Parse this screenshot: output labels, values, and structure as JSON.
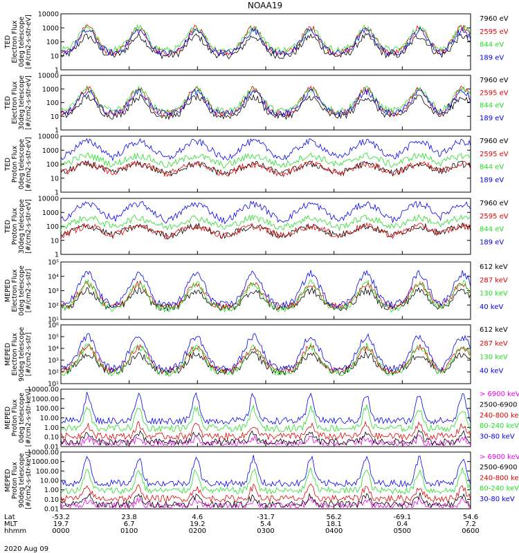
{
  "title": "NOAA19",
  "date_label": "2020 Aug 09",
  "colors": {
    "black": "#000000",
    "red": "#e00000",
    "green": "#22dd22",
    "blue": "#0000ee",
    "magenta": "#ee00ee"
  },
  "footer": {
    "rows": [
      {
        "label": "Lat",
        "values": [
          "-53.2",
          "23.8",
          "4.6",
          "-31.7",
          "56.2",
          "-69.1",
          "54.6"
        ]
      },
      {
        "label": "MLT",
        "values": [
          "19.7",
          "6.7",
          "19.2",
          "5.4",
          "18.1",
          "0.4",
          "7.2"
        ]
      },
      {
        "label": "hhmm",
        "values": [
          "0000",
          "0100",
          "0200",
          "0300",
          "0400",
          "0500",
          "0600"
        ]
      }
    ]
  },
  "chart_data": [
    {
      "type": "line",
      "id": "p1",
      "ylabel": [
        "TED",
        "Electron Flux",
        "0deg telescope",
        "[#/cm2-s-str-eV]"
      ],
      "yscale": "log",
      "ylim": [
        1,
        10000
      ],
      "ytick_labels": [
        "1",
        "10",
        "100",
        "1000",
        "10000"
      ],
      "legend": [
        {
          "label": "7960 eV",
          "color": "#000000"
        },
        {
          "label": "2595 eV",
          "color": "#e00000"
        },
        {
          "label": "844 eV",
          "color": "#22dd22"
        },
        {
          "label": "189 eV",
          "color": "#0000ee"
        }
      ]
    },
    {
      "type": "line",
      "id": "p2",
      "ylabel": [
        "TED",
        "Electron Flux",
        "30deg telescope",
        "[#/cm2-s-str-eV]"
      ],
      "yscale": "log",
      "ylim": [
        1,
        10000
      ],
      "ytick_labels": [
        "1",
        "10",
        "100",
        "1000",
        "10000"
      ],
      "legend": [
        {
          "label": "7960 eV",
          "color": "#000000"
        },
        {
          "label": "2595 eV",
          "color": "#e00000"
        },
        {
          "label": "844 eV",
          "color": "#22dd22"
        },
        {
          "label": "189 eV",
          "color": "#0000ee"
        }
      ]
    },
    {
      "type": "line",
      "id": "p3",
      "ylabel": [
        "TED",
        "Proton Flux",
        "0deg telescope",
        "[#/cm2-s-str-eV]"
      ],
      "yscale": "log",
      "ylim": [
        1,
        10000
      ],
      "ytick_labels": [
        "1",
        "10",
        "100",
        "1000",
        "10000"
      ],
      "legend": [
        {
          "label": "7960 eV",
          "color": "#000000"
        },
        {
          "label": "2595 eV",
          "color": "#e00000"
        },
        {
          "label": "844 eV",
          "color": "#22dd22"
        },
        {
          "label": "189 eV",
          "color": "#0000ee"
        }
      ]
    },
    {
      "type": "line",
      "id": "p4",
      "ylabel": [
        "TED",
        "Proton Flux",
        "30deg telescope",
        "[#/cm2-s-str-eV]"
      ],
      "yscale": "log",
      "ylim": [
        1,
        10000
      ],
      "ytick_labels": [
        "1",
        "10",
        "100",
        "1000",
        "10000"
      ],
      "legend": [
        {
          "label": "7960 eV",
          "color": "#000000"
        },
        {
          "label": "2595 eV",
          "color": "#e00000"
        },
        {
          "label": "844 eV",
          "color": "#22dd22"
        },
        {
          "label": "189 eV",
          "color": "#0000ee"
        }
      ]
    },
    {
      "type": "line",
      "id": "p5",
      "ylabel": [
        "MEPED",
        "Electron Flux",
        "0deg telescope",
        "[#/cm2-s-str]"
      ],
      "yscale": "log",
      "ylim": [
        10,
        100000
      ],
      "ytick_labels": [
        "10¹",
        "10²",
        "10³",
        "10⁴",
        "10⁵"
      ],
      "legend": [
        {
          "label": "612 keV",
          "color": "#000000"
        },
        {
          "label": "287 keV",
          "color": "#e00000"
        },
        {
          "label": "130 keV",
          "color": "#22dd22"
        },
        {
          "label": "40 keV",
          "color": "#0000ee"
        }
      ]
    },
    {
      "type": "line",
      "id": "p6",
      "ylabel": [
        "MEPED",
        "Electron Flux",
        "90deg telescope",
        "[#/cm2-s-str]"
      ],
      "yscale": "log",
      "ylim": [
        10,
        1000000
      ],
      "ytick_labels": [
        "10¹",
        "10²",
        "10³",
        "10⁴",
        "10⁵",
        "10⁶"
      ],
      "legend": [
        {
          "label": "612 keV",
          "color": "#000000"
        },
        {
          "label": "287 keV",
          "color": "#e00000"
        },
        {
          "label": "130 keV",
          "color": "#22dd22"
        },
        {
          "label": "40 keV",
          "color": "#0000ee"
        }
      ]
    },
    {
      "type": "line",
      "id": "p7",
      "ylabel": [
        "MEPED",
        "Proton Flux",
        "0deg telescope",
        "[#/cm2-s-str-keV]"
      ],
      "yscale": "log",
      "ylim": [
        0.01,
        10000
      ],
      "ytick_labels": [
        "0.01",
        "0.10",
        "1.00",
        "10.00",
        "100.00",
        "1000.00",
        "10000.00"
      ],
      "legend": [
        {
          "label": "> 6900 keV",
          "color": "#ee00ee"
        },
        {
          "label": "2500-6900",
          "color": "#000000"
        },
        {
          "label": "240-800 keV",
          "color": "#e00000"
        },
        {
          "label": "80-240 keV",
          "color": "#22dd22"
        },
        {
          "label": "30-80 keV",
          "color": "#0000ee"
        }
      ]
    },
    {
      "type": "line",
      "id": "p8",
      "ylabel": [
        "MEPED",
        "Proton Flux",
        "90deg telescope",
        "[#/cm2-s-str-keV]"
      ],
      "yscale": "log",
      "ylim": [
        0.01,
        10000
      ],
      "ytick_labels": [
        "0.01",
        "0.10",
        "1.00",
        "10.00",
        "100.00",
        "1000.00",
        "10000.00"
      ],
      "legend": [
        {
          "label": "> 6900 keV",
          "color": "#ee00ee"
        },
        {
          "label": "2500-6900",
          "color": "#000000"
        },
        {
          "label": "240-800 keV",
          "color": "#e00000"
        },
        {
          "label": "80-240 keV",
          "color": "#22dd22"
        },
        {
          "label": "30-80 keV",
          "color": "#0000ee"
        }
      ]
    }
  ]
}
